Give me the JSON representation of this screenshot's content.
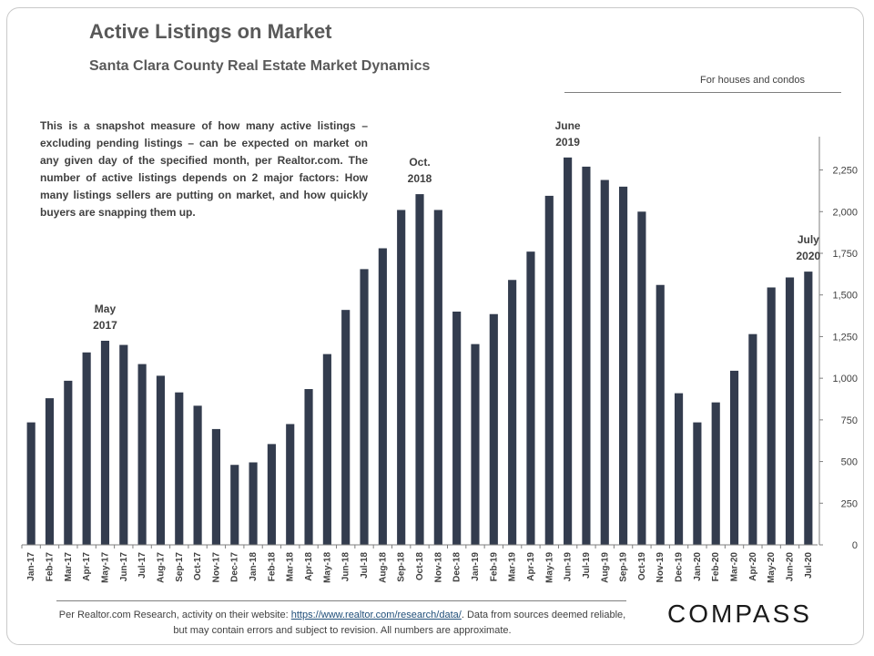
{
  "title": "Active Listings on Market",
  "subtitle": "Santa Clara County Real Estate Market Dynamics",
  "scope_note": "For houses and condos",
  "description": "This is a snapshot measure of how many active listings – excluding pending listings – can be expected on market on any given day of the specified month, per Realtor.com. The number of active listings depends on 2 major factors: How many listings sellers are putting on market, and how quickly buyers are snapping them up.",
  "annotations": [
    {
      "index": 4,
      "line1": "May",
      "line2": "2017"
    },
    {
      "index": 21,
      "line1": "Oct.",
      "line2": "2018"
    },
    {
      "index": 29,
      "line1": "June",
      "line2": "2019"
    },
    {
      "index": 42,
      "line1": "July",
      "line2": "2020"
    }
  ],
  "footer": {
    "prefix": "Per Realtor.com Research, activity on their website: ",
    "link_text": "https://www.realtor.com/research/data/",
    "suffix": ". Data from sources deemed reliable, but may contain errors and subject to revision. All numbers are approximate."
  },
  "logo_text": "COMPASS",
  "colors": {
    "bar": "#333c4e",
    "axis": "#7f7f7f",
    "text": "#404040"
  },
  "chart_data": {
    "type": "bar",
    "categories": [
      "Jan-17",
      "Feb-17",
      "Mar-17",
      "Apr-17",
      "May-17",
      "Jun-17",
      "Jul-17",
      "Aug-17",
      "Sep-17",
      "Oct-17",
      "Nov-17",
      "Dec-17",
      "Jan-18",
      "Feb-18",
      "Mar-18",
      "Apr-18",
      "May-18",
      "Jun-18",
      "Jul-18",
      "Aug-18",
      "Sep-18",
      "Oct-18",
      "Nov-18",
      "Dec-18",
      "Jan-19",
      "Feb-19",
      "Mar-19",
      "Apr-19",
      "May-19",
      "Jun-19",
      "Jul-19",
      "Aug-19",
      "Sep-19",
      "Oct-19",
      "Nov-19",
      "Dec-19",
      "Jan-20",
      "Feb-20",
      "Mar-20",
      "Apr-20",
      "May-20",
      "Jun-20",
      "Jul-20"
    ],
    "values": [
      735,
      880,
      985,
      1155,
      1225,
      1200,
      1085,
      1015,
      915,
      835,
      695,
      480,
      495,
      605,
      725,
      935,
      1145,
      1410,
      1655,
      1780,
      2010,
      2105,
      2010,
      1400,
      1205,
      1385,
      1590,
      1760,
      2095,
      2325,
      2270,
      2190,
      2150,
      2000,
      1560,
      910,
      735,
      855,
      1045,
      1265,
      1545,
      1605,
      1640
    ],
    "yticks": [
      "0",
      "250",
      "500",
      "750",
      "1,000",
      "1,250",
      "1,500",
      "1,750",
      "2,000",
      "2,250"
    ],
    "ylim": [
      0,
      2450
    ],
    "ytick_step": 250,
    "y_axis_position": "right",
    "grid": false,
    "legend": "none"
  }
}
